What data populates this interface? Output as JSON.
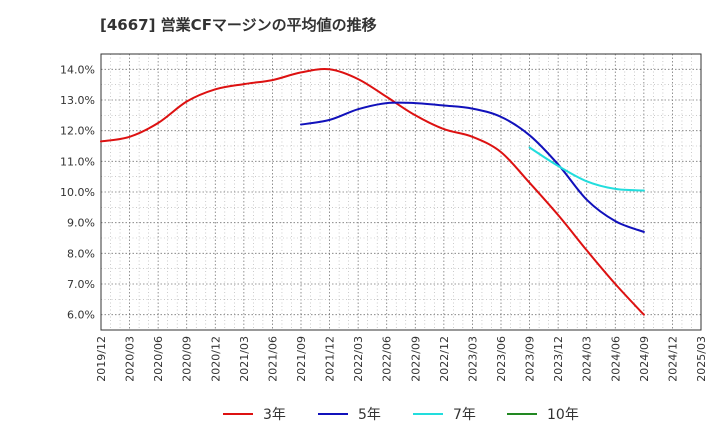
{
  "chart_data": {
    "type": "line",
    "title": "[4667]  営業CFマージンの平均値の推移",
    "xlabel": "",
    "ylabel": "",
    "ylim": [
      5.5,
      14.5
    ],
    "grid": true,
    "legend_position": "bottom",
    "y_ticks": [
      "6.0%",
      "7.0%",
      "8.0%",
      "9.0%",
      "10.0%",
      "11.0%",
      "12.0%",
      "13.0%",
      "14.0%"
    ],
    "y_tick_values": [
      6,
      7,
      8,
      9,
      10,
      11,
      12,
      13,
      14
    ],
    "x_ticks": [
      "2019/12",
      "2020/03",
      "2020/06",
      "2020/09",
      "2020/12",
      "2021/03",
      "2021/06",
      "2021/09",
      "2021/12",
      "2022/03",
      "2022/06",
      "2022/09",
      "2022/12",
      "2023/03",
      "2023/06",
      "2023/09",
      "2023/12",
      "2024/03",
      "2024/06",
      "2024/09",
      "2024/12",
      "2025/03"
    ],
    "series": [
      {
        "name": "3年",
        "color": "#dd1111",
        "points": [
          [
            "2019/12",
            11.65
          ],
          [
            "2020/03",
            11.8
          ],
          [
            "2020/06",
            12.25
          ],
          [
            "2020/09",
            12.95
          ],
          [
            "2020/12",
            13.35
          ],
          [
            "2021/03",
            13.52
          ],
          [
            "2021/06",
            13.65
          ],
          [
            "2021/09",
            13.9
          ],
          [
            "2021/12",
            14.0
          ],
          [
            "2022/03",
            13.68
          ],
          [
            "2022/06",
            13.1
          ],
          [
            "2022/09",
            12.5
          ],
          [
            "2022/12",
            12.05
          ],
          [
            "2023/03",
            11.8
          ],
          [
            "2023/06",
            11.3
          ],
          [
            "2023/09",
            10.3
          ],
          [
            "2023/12",
            9.25
          ],
          [
            "2024/03",
            8.1
          ],
          [
            "2024/06",
            7.0
          ],
          [
            "2024/09",
            6.0
          ]
        ]
      },
      {
        "name": "5年",
        "color": "#1111bb",
        "points": [
          [
            "2021/09",
            12.2
          ],
          [
            "2021/12",
            12.35
          ],
          [
            "2022/03",
            12.7
          ],
          [
            "2022/06",
            12.9
          ],
          [
            "2022/09",
            12.9
          ],
          [
            "2022/12",
            12.82
          ],
          [
            "2023/03",
            12.72
          ],
          [
            "2023/06",
            12.45
          ],
          [
            "2023/09",
            11.85
          ],
          [
            "2023/12",
            10.9
          ],
          [
            "2024/03",
            9.75
          ],
          [
            "2024/06",
            9.05
          ],
          [
            "2024/09",
            8.7
          ]
        ]
      },
      {
        "name": "7年",
        "color": "#22dddd",
        "points": [
          [
            "2023/09",
            11.45
          ],
          [
            "2023/12",
            10.85
          ],
          [
            "2024/03",
            10.35
          ],
          [
            "2024/06",
            10.1
          ],
          [
            "2024/09",
            10.05
          ]
        ]
      },
      {
        "name": "10年",
        "color": "#228822",
        "points": []
      }
    ]
  }
}
